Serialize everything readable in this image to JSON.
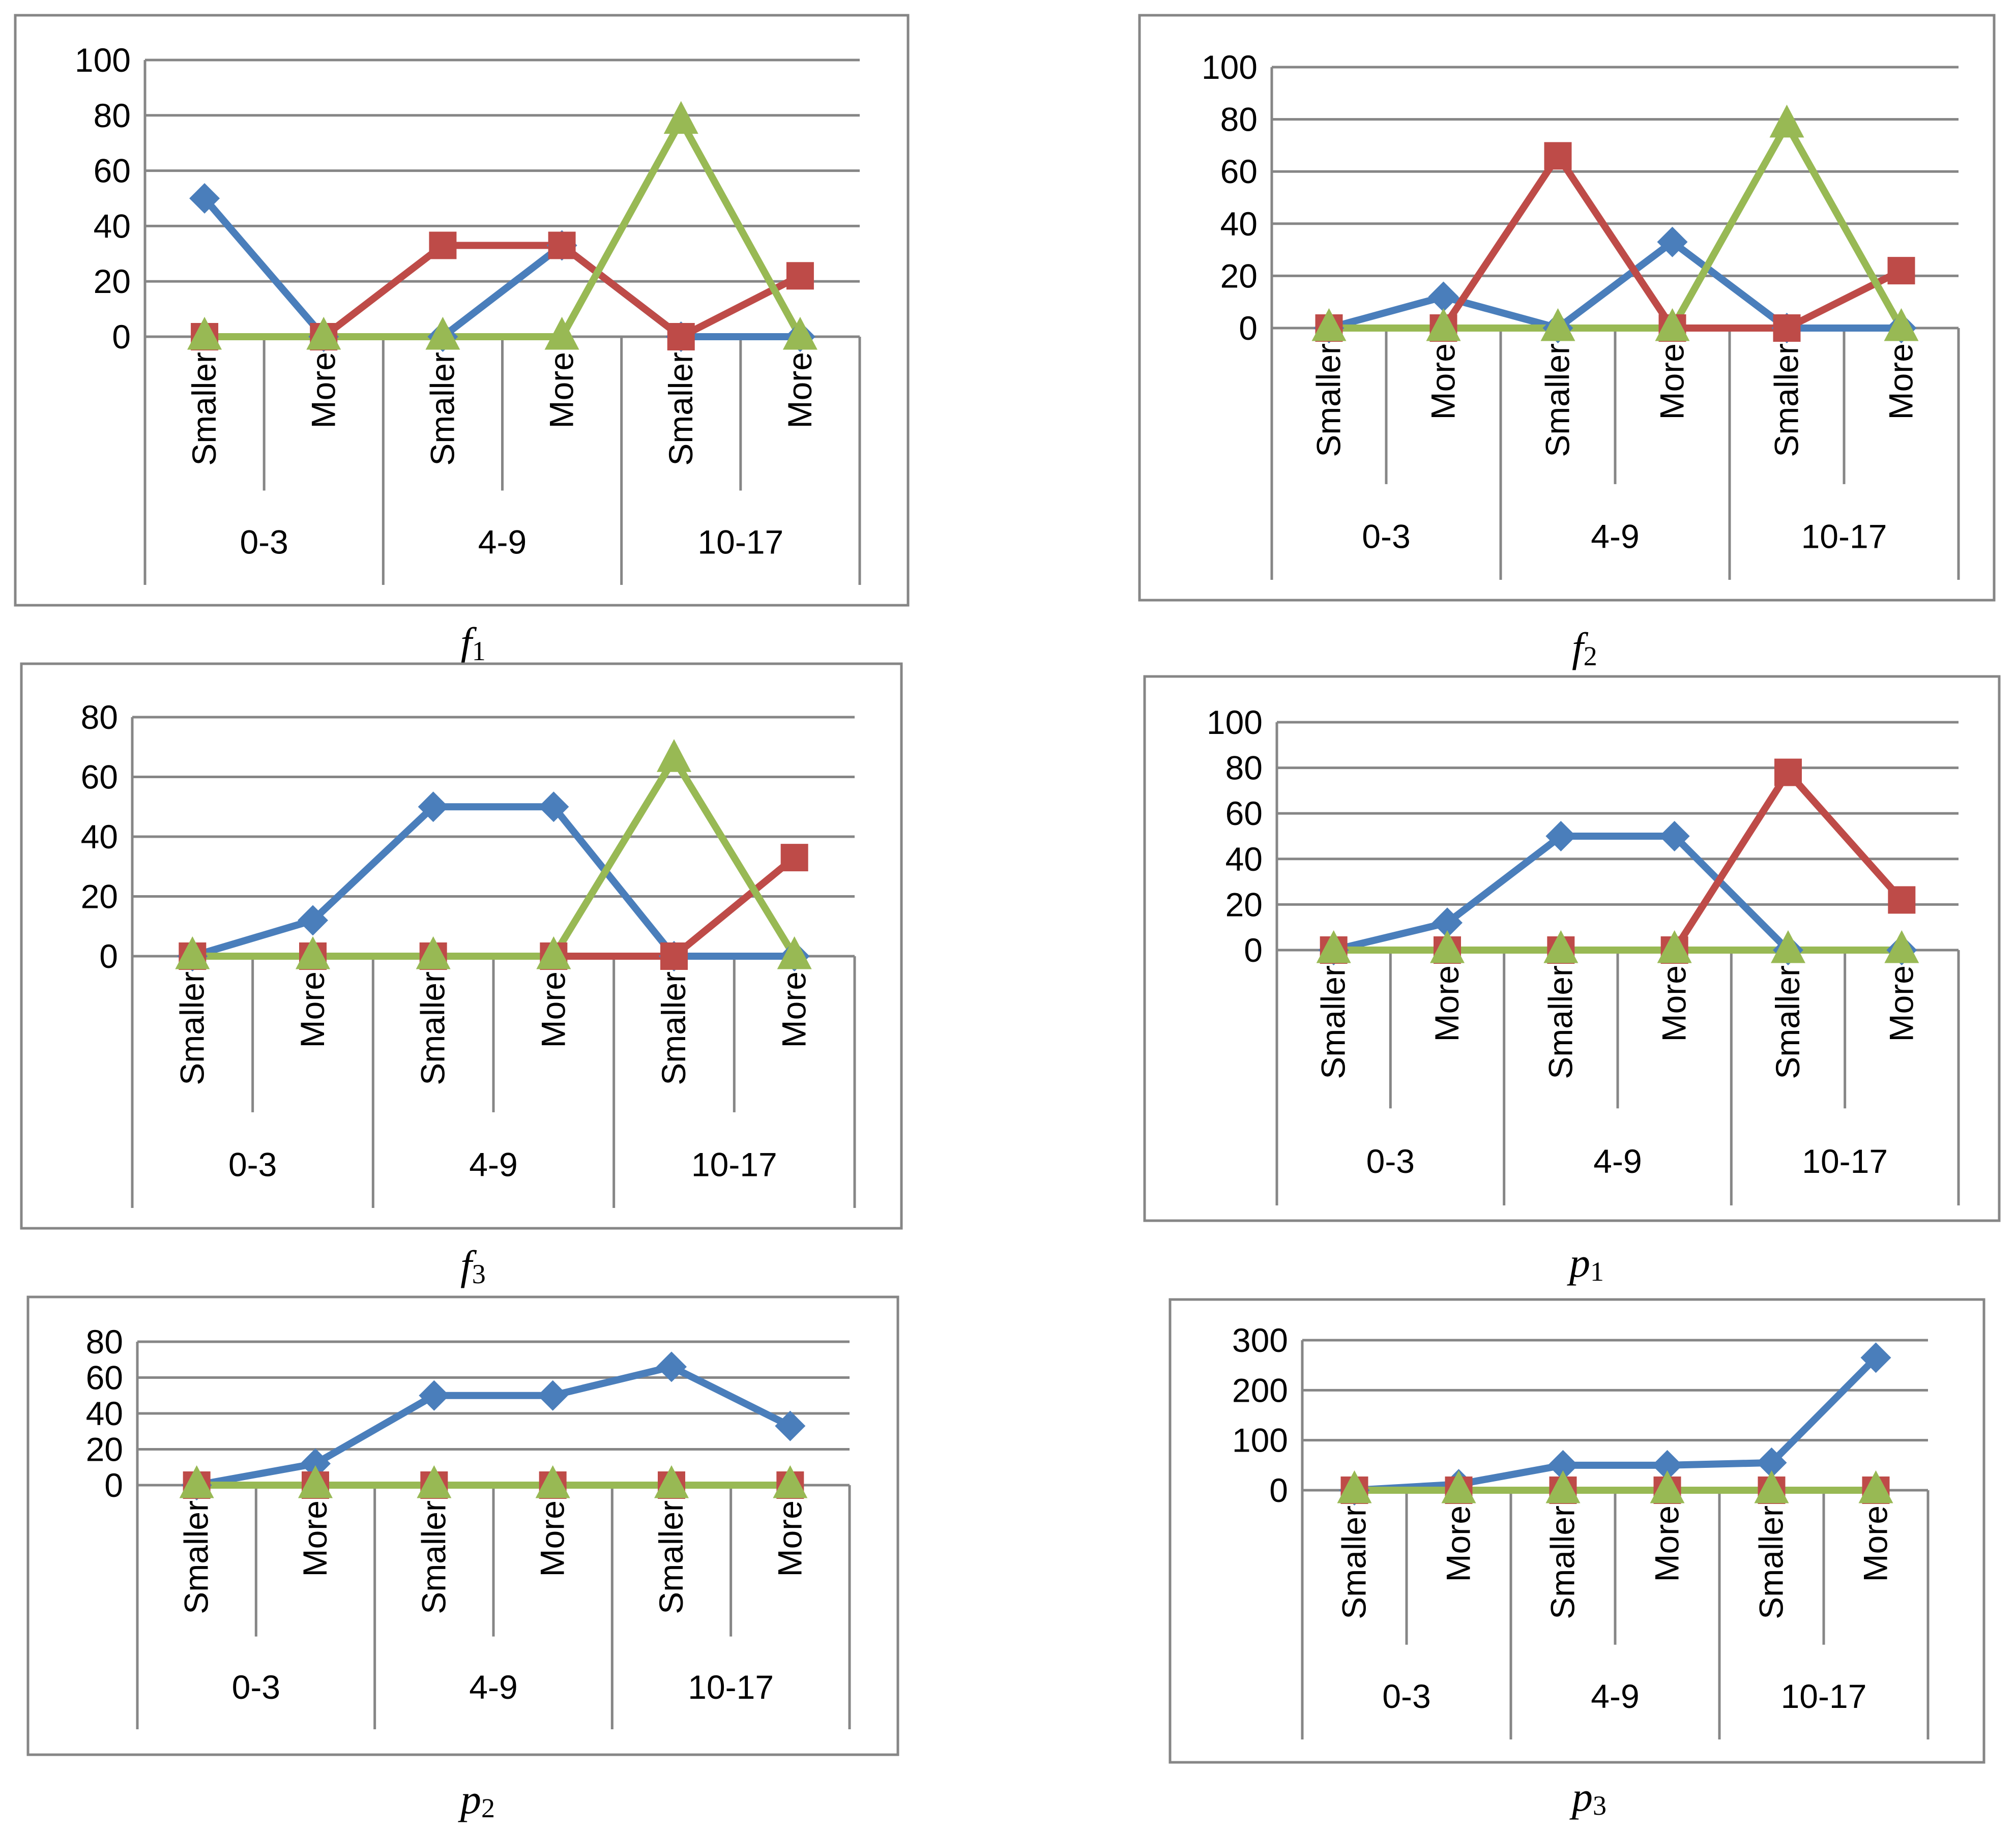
{
  "series_names": [
    "series-1",
    "series-2",
    "series-3"
  ],
  "colors": {
    "series-1": "#4a7ebb",
    "series-2": "#be4b48",
    "series-3": "#98b954"
  },
  "chart_data": [
    {
      "type": "line",
      "caption_letter": "f",
      "caption_sub": "1",
      "categories": [
        "Smaller",
        "More",
        "Smaller",
        "More",
        "Smaller",
        "More"
      ],
      "groups": [
        "0-3",
        "4-9",
        "10-17"
      ],
      "ylim": [
        0,
        100
      ],
      "yticks": [
        0,
        20,
        40,
        60,
        80,
        100
      ],
      "series": [
        {
          "name": "series-1",
          "values": [
            50,
            0,
            0,
            33,
            0,
            0
          ]
        },
        {
          "name": "series-2",
          "values": [
            0,
            0,
            33,
            33,
            0,
            22
          ]
        },
        {
          "name": "series-3",
          "values": [
            0,
            0,
            0,
            0,
            78,
            0
          ]
        }
      ]
    },
    {
      "type": "line",
      "caption_letter": "f",
      "caption_sub": "2",
      "categories": [
        "Smaller",
        "More",
        "Smaller",
        "More",
        "Smaller",
        "More"
      ],
      "groups": [
        "0-3",
        "4-9",
        "10-17"
      ],
      "ylim": [
        0,
        100
      ],
      "yticks": [
        0,
        20,
        40,
        60,
        80,
        100
      ],
      "series": [
        {
          "name": "series-1",
          "values": [
            0,
            12,
            0,
            33,
            0,
            0
          ]
        },
        {
          "name": "series-2",
          "values": [
            0,
            0,
            66,
            0,
            0,
            22
          ]
        },
        {
          "name": "series-3",
          "values": [
            0,
            0,
            0,
            0,
            78,
            0
          ]
        }
      ]
    },
    {
      "type": "line",
      "caption_letter": "f",
      "caption_sub": "3",
      "categories": [
        "Smaller",
        "More",
        "Smaller",
        "More",
        "Smaller",
        "More"
      ],
      "groups": [
        "0-3",
        "4-9",
        "10-17"
      ],
      "ylim": [
        0,
        80
      ],
      "yticks": [
        0,
        20,
        40,
        60,
        80
      ],
      "series": [
        {
          "name": "series-1",
          "values": [
            0,
            12,
            50,
            50,
            0,
            0
          ]
        },
        {
          "name": "series-2",
          "values": [
            0,
            0,
            0,
            0,
            0,
            33
          ]
        },
        {
          "name": "series-3",
          "values": [
            0,
            0,
            0,
            0,
            66,
            0
          ]
        }
      ]
    },
    {
      "type": "line",
      "caption_letter": "p",
      "caption_sub": "1",
      "categories": [
        "Smaller",
        "More",
        "Smaller",
        "More",
        "Smaller",
        "More"
      ],
      "groups": [
        "0-3",
        "4-9",
        "10-17"
      ],
      "ylim": [
        0,
        100
      ],
      "yticks": [
        0,
        20,
        40,
        60,
        80,
        100
      ],
      "series": [
        {
          "name": "series-1",
          "values": [
            0,
            12,
            50,
            50,
            0,
            0
          ]
        },
        {
          "name": "series-2",
          "values": [
            0,
            0,
            0,
            0,
            78,
            22
          ]
        },
        {
          "name": "series-3",
          "values": [
            0,
            0,
            0,
            0,
            0,
            0
          ]
        }
      ]
    },
    {
      "type": "line",
      "caption_letter": "p",
      "caption_sub": "2",
      "categories": [
        "Smaller",
        "More",
        "Smaller",
        "More",
        "Smaller",
        "More"
      ],
      "groups": [
        "0-3",
        "4-9",
        "10-17"
      ],
      "ylim": [
        0,
        80
      ],
      "yticks": [
        0,
        20,
        40,
        60,
        80
      ],
      "series": [
        {
          "name": "series-1",
          "values": [
            0,
            12,
            50,
            50,
            66,
            33
          ]
        },
        {
          "name": "series-2",
          "values": [
            0,
            0,
            0,
            0,
            0,
            0
          ]
        },
        {
          "name": "series-3",
          "values": [
            0,
            0,
            0,
            0,
            0,
            0
          ]
        }
      ]
    },
    {
      "type": "line",
      "caption_letter": "p",
      "caption_sub": "3",
      "categories": [
        "Smaller",
        "More",
        "Smaller",
        "More",
        "Smaller",
        "More"
      ],
      "groups": [
        "0-3",
        "4-9",
        "10-17"
      ],
      "ylim": [
        0,
        300
      ],
      "yticks": [
        0,
        100,
        200,
        300
      ],
      "series": [
        {
          "name": "series-1",
          "values": [
            0,
            12,
            50,
            50,
            55,
            265
          ]
        },
        {
          "name": "series-2",
          "values": [
            0,
            0,
            0,
            0,
            0,
            0
          ]
        },
        {
          "name": "series-3",
          "values": [
            0,
            0,
            0,
            0,
            0,
            0
          ]
        }
      ]
    }
  ]
}
